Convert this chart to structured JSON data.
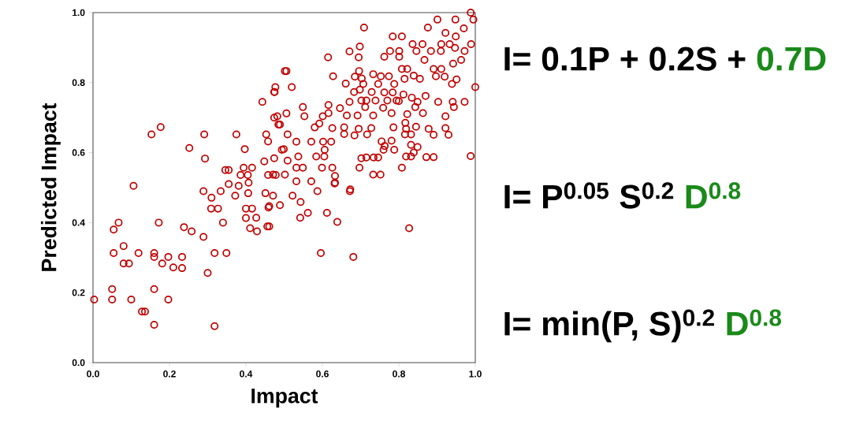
{
  "chart_data": {
    "type": "scatter",
    "xlabel": "Impact",
    "ylabel": "Predicted Impact",
    "xlim": [
      0,
      1
    ],
    "ylim": [
      0,
      1
    ],
    "xticks": [
      {
        "value": 0,
        "label": "0.0"
      },
      {
        "value": 0.2,
        "label": "0.2"
      },
      {
        "value": 0.4,
        "label": "0.4"
      },
      {
        "value": 0.6,
        "label": "0.6"
      },
      {
        "value": 0.8,
        "label": "0.8"
      },
      {
        "value": 1,
        "label": "1.0"
      }
    ],
    "yticks": [
      {
        "value": 0,
        "label": "0.0"
      },
      {
        "value": 0.2,
        "label": "0.2"
      },
      {
        "value": 0.4,
        "label": "0.4"
      },
      {
        "value": 0.6,
        "label": "0.6"
      },
      {
        "value": 0.8,
        "label": "0.8"
      },
      {
        "value": 1,
        "label": "1.0"
      }
    ],
    "marker": "circle",
    "grid": false,
    "annotations": [
      "I= 0.1P + 0.2S + ",
      "0.7D",
      "I= P$^{0.05}$ S$^{0.2}$ ",
      "D$^{0.8}$",
      "I= min(P, S)$^{0.2}$ ",
      "D$^{0.8}$"
    ],
    "series": [
      {
        "color": "#c00000",
        "x": [
          0.003,
          0.05,
          0.05,
          0.1,
          0.128,
          0.136,
          0.16,
          0.16,
          0.197,
          0.054,
          0.067,
          0.054,
          0.08,
          0.08,
          0.094,
          0.119,
          0.16,
          0.16,
          0.172,
          0.181,
          0.197,
          0.21,
          0.233,
          0.233,
          0.238,
          0.258,
          0.289,
          0.3,
          0.318,
          0.349,
          0.318,
          0.106,
          0.289,
          0.31,
          0.309,
          0.327,
          0.334,
          0.34,
          0.355,
          0.372,
          0.381,
          0.406,
          0.4,
          0.416,
          0.4,
          0.427,
          0.411,
          0.429,
          0.451,
          0.471,
          0.459,
          0.456,
          0.489,
          0.153,
          0.177,
          0.252,
          0.291,
          0.293,
          0.375,
          0.397,
          0.346,
          0.355,
          0.394,
          0.416,
          0.386,
          0.405,
          0.407,
          0.448,
          0.453,
          0.458,
          0.474,
          0.458,
          0.478,
          0.443,
          0.474,
          0.477,
          0.474,
          0.482,
          0.489,
          0.502,
          0.494,
          0.709,
          0.615,
          0.671,
          0.698,
          0.695,
          0.506,
          0.628,
          0.52,
          0.475,
          0.661,
          0.685,
          0.696,
          0.703,
          0.707,
          0.683,
          0.698,
          0.733,
          0.753,
          0.774,
          0.746,
          0.788,
          0.729,
          0.762,
          0.784,
          0.762,
          0.777,
          0.801,
          0.784,
          0.808,
          0.801,
          0.808,
          0.822,
          0.815,
          0.839,
          0.855,
          0.836,
          0.846,
          0.862,
          0.867,
          0.884,
          0.901,
          0.876,
          0.911,
          0.91,
          0.933,
          0.948,
          0.922,
          0.97,
          0.949,
          0.947,
          0.988,
          0.995,
          0.989,
          0.972,
          0.963,
          0.942,
          0.891,
          0.911,
          0.897,
          0.92,
          0.951,
          0.939,
          1.0,
          0.87,
          0.834,
          0.849,
          0.812,
          0.8,
          0.903,
          0.941,
          0.972,
          0.944,
          0.843,
          0.863,
          0.822,
          0.922,
          0.817,
          0.845,
          0.819,
          0.878,
          0.922,
          0.891,
          0.93,
          0.832,
          0.816,
          0.786,
          0.781,
          0.763,
          0.788,
          0.755,
          0.832,
          0.849,
          0.839,
          0.819,
          0.832,
          0.872,
          0.891,
          0.988,
          0.808,
          0.702,
          0.715,
          0.739,
          0.77,
          0.794,
          0.733,
          0.712,
          0.759,
          0.781,
          0.692,
          0.664,
          0.646,
          0.671,
          0.616,
          0.616,
          0.601,
          0.549,
          0.553,
          0.506,
          0.485,
          0.58,
          0.592,
          0.626,
          0.657,
          0.695,
          0.728,
          0.657,
          0.684,
          0.717,
          0.623,
          0.602,
          0.571,
          0.532,
          0.509,
          0.606,
          0.584,
          0.605,
          0.537,
          0.499,
          0.509,
          0.532,
          0.549,
          0.599,
          0.626,
          0.633,
          0.571,
          0.532,
          0.471,
          0.502,
          0.702,
          0.715,
          0.734,
          0.746,
          0.697,
          0.733,
          0.752,
          0.76,
          0.673,
          0.633,
          0.672,
          0.587,
          0.522,
          0.543,
          0.461,
          0.562,
          0.542,
          0.612,
          0.639,
          0.461,
          0.827,
          0.596,
          0.681,
          0.632
        ],
        "values": [
          0.18,
          0.18,
          0.21,
          0.18,
          0.146,
          0.146,
          0.21,
          0.108,
          0.18,
          0.313,
          0.4,
          0.38,
          0.333,
          0.283,
          0.283,
          0.313,
          0.313,
          0.302,
          0.4,
          0.283,
          0.302,
          0.272,
          0.302,
          0.27,
          0.387,
          0.375,
          0.359,
          0.256,
          0.313,
          0.313,
          0.104,
          0.505,
          0.49,
          0.471,
          0.44,
          0.44,
          0.49,
          0.4,
          0.51,
          0.477,
          0.505,
          0.484,
          0.44,
          0.44,
          0.413,
          0.414,
          0.384,
          0.375,
          0.484,
          0.477,
          0.443,
          0.389,
          0.45,
          0.652,
          0.673,
          0.613,
          0.652,
          0.583,
          0.652,
          0.61,
          0.55,
          0.55,
          0.557,
          0.557,
          0.536,
          0.536,
          0.514,
          0.575,
          0.652,
          0.632,
          0.584,
          0.536,
          0.536,
          0.745,
          0.773,
          0.787,
          0.7,
          0.704,
          0.68,
          0.833,
          0.608,
          0.957,
          0.872,
          0.889,
          0.903,
          0.872,
          0.833,
          0.818,
          0.787,
          0.773,
          0.797,
          0.817,
          0.833,
          0.812,
          0.796,
          0.773,
          0.78,
          0.824,
          0.818,
          0.818,
          0.796,
          0.796,
          0.773,
          0.772,
          0.772,
          0.874,
          0.89,
          0.89,
          0.932,
          0.932,
          0.874,
          0.839,
          0.839,
          0.811,
          0.82,
          0.811,
          0.91,
          0.89,
          0.91,
          0.865,
          0.89,
          0.98,
          0.957,
          0.91,
          0.89,
          0.91,
          0.98,
          0.942,
          0.955,
          0.932,
          0.899,
          1.0,
          0.98,
          0.91,
          0.89,
          0.865,
          0.854,
          0.839,
          0.839,
          0.818,
          0.817,
          0.809,
          0.796,
          0.787,
          0.762,
          0.757,
          0.745,
          0.766,
          0.747,
          0.745,
          0.745,
          0.745,
          0.73,
          0.73,
          0.713,
          0.71,
          0.704,
          0.685,
          0.674,
          0.668,
          0.668,
          0.67,
          0.651,
          0.651,
          0.652,
          0.652,
          0.672,
          0.634,
          0.619,
          0.608,
          0.632,
          0.622,
          0.616,
          0.6,
          0.589,
          0.589,
          0.587,
          0.587,
          0.59,
          0.557,
          0.749,
          0.749,
          0.749,
          0.749,
          0.749,
          0.706,
          0.73,
          0.728,
          0.713,
          0.706,
          0.706,
          0.727,
          0.745,
          0.736,
          0.713,
          0.704,
          0.73,
          0.704,
          0.712,
          0.68,
          0.672,
          0.683,
          0.67,
          0.672,
          0.668,
          0.67,
          0.653,
          0.649,
          0.652,
          0.631,
          0.631,
          0.631,
          0.631,
          0.652,
          0.608,
          0.589,
          0.589,
          0.589,
          0.61,
          0.577,
          0.557,
          0.557,
          0.557,
          0.557,
          0.533,
          0.518,
          0.518,
          0.537,
          0.537,
          0.584,
          0.586,
          0.586,
          0.586,
          0.557,
          0.537,
          0.537,
          0.608,
          0.495,
          0.514,
          0.49,
          0.49,
          0.477,
          0.459,
          0.447,
          0.428,
          0.414,
          0.428,
          0.402,
          0.389,
          0.384,
          0.313,
          0.302,
          0.512
        ]
      }
    ]
  }
}
